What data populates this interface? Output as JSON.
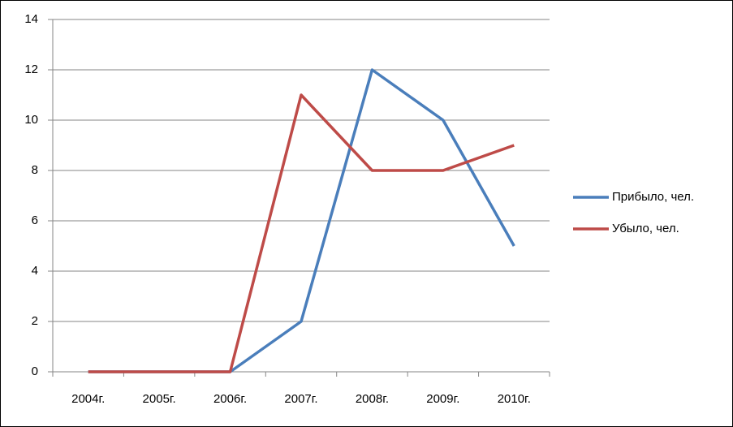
{
  "chart_data": {
    "type": "line",
    "categories": [
      "2004г.",
      "2005г.",
      "2006г.",
      "2007г.",
      "2008г.",
      "2009г.",
      "2010г."
    ],
    "series": [
      {
        "name": "Прибыло, чел.",
        "color": "#4a7ebb",
        "values": [
          0,
          0,
          0,
          2,
          12,
          10,
          5
        ]
      },
      {
        "name": "Убыло, чел.",
        "color": "#be4b48",
        "values": [
          0,
          0,
          0,
          11,
          8,
          8,
          9
        ]
      }
    ],
    "ylim": [
      0,
      14
    ],
    "yticks": [
      0,
      2,
      4,
      6,
      8,
      10,
      12,
      14
    ],
    "grid": true,
    "legend": "right"
  }
}
